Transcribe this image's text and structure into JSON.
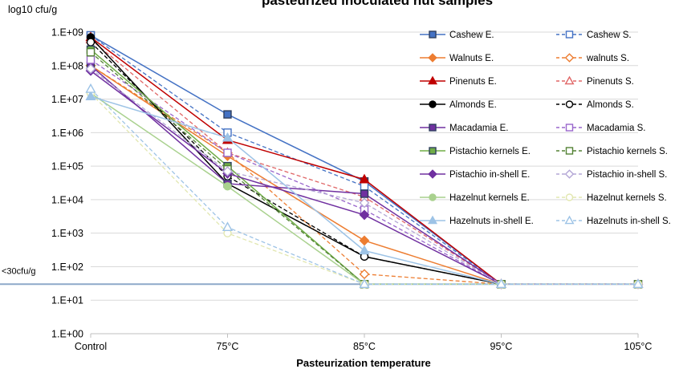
{
  "chart_data": {
    "type": "line",
    "title": "pasteurized inoculated nut samples",
    "ylabel": "log10 cfu/g",
    "xlabel": "Pasteurization temperature",
    "yscale": "log",
    "ylim": [
      1,
      1000000000
    ],
    "categories": [
      "Control",
      "75°C",
      "85°C",
      "95°C",
      "105°C"
    ],
    "y_tick_labels": [
      "1.E+00",
      "1.E+01",
      "1.E+02",
      "1.E+03",
      "1.E+04",
      "1.E+05",
      "1.E+06",
      "1.E+07",
      "1.E+08",
      "1.E+09"
    ],
    "detection_limit": {
      "value": 30,
      "label": "<30cfu/g",
      "color": "#8EA9C9"
    },
    "grid": true,
    "legend_position": "right",
    "series": [
      {
        "name": "Cashew E.",
        "color": "#4472C4",
        "dash": "solid",
        "marker": "square",
        "fill": true,
        "values": [
          800000000,
          3500000,
          35000,
          30,
          null
        ]
      },
      {
        "name": "Cashew S.",
        "color": "#4472C4",
        "dash": "dashed",
        "marker": "square",
        "fill": false,
        "values": [
          800000000,
          1000000,
          25000,
          30,
          30
        ]
      },
      {
        "name": "Walnuts E.",
        "color": "#ED7D31",
        "dash": "solid",
        "marker": "diamond",
        "fill": true,
        "values": [
          100000000,
          200000,
          600,
          30,
          null
        ]
      },
      {
        "name": "walnuts S.",
        "color": "#ED7D31",
        "dash": "dashed",
        "marker": "diamond",
        "fill": false,
        "values": [
          100000000,
          250000,
          60,
          30,
          30
        ]
      },
      {
        "name": "Pinenuts E.",
        "color": "#C00000",
        "dash": "solid",
        "marker": "triangle",
        "fill": true,
        "values": [
          700000000,
          600000,
          40000,
          30,
          null
        ]
      },
      {
        "name": "Pinenuts S.",
        "color": "#E06666",
        "dash": "dashed",
        "marker": "triangle",
        "fill": false,
        "values": [
          600000000,
          250000,
          12000,
          30,
          30
        ]
      },
      {
        "name": "Almonds E.",
        "color": "#000000",
        "dash": "solid",
        "marker": "circle",
        "fill": true,
        "values": [
          700000000,
          30000,
          200,
          30,
          null
        ]
      },
      {
        "name": "Almonds S.",
        "color": "#000000",
        "dash": "dashed",
        "marker": "circle",
        "fill": false,
        "values": [
          500000000,
          50000,
          200,
          30,
          30
        ]
      },
      {
        "name": "Macadamia E.",
        "color": "#7030A0",
        "dash": "solid",
        "marker": "square",
        "fill": true,
        "values": [
          100000000,
          30000,
          15000,
          30,
          null
        ]
      },
      {
        "name": "Macadamia S.",
        "color": "#9966CC",
        "dash": "dashed",
        "marker": "square",
        "fill": false,
        "values": [
          150000000,
          250000,
          5000,
          30,
          30
        ]
      },
      {
        "name": "Pistachio kernels E.",
        "color": "#70AD47",
        "dash": "solid",
        "marker": "square",
        "fill": true,
        "values": [
          300000000,
          100000,
          30,
          30,
          null
        ]
      },
      {
        "name": "Pistachio kernels S.",
        "color": "#548235",
        "dash": "dashed",
        "marker": "square",
        "fill": false,
        "values": [
          250000000,
          80000,
          30,
          30,
          30
        ]
      },
      {
        "name": "Pistachio in-shell E.",
        "color": "#7030A0",
        "dash": "solid",
        "marker": "diamond",
        "fill": true,
        "values": [
          70000000,
          60000,
          3500,
          30,
          null
        ]
      },
      {
        "name": "Pistachio in-shell S.",
        "color": "#B4A7D6",
        "dash": "dashed",
        "marker": "diamond",
        "fill": false,
        "values": [
          80000000,
          70000,
          8000,
          30,
          30
        ]
      },
      {
        "name": "Hazelnut kernels E.",
        "color": "#A9D18E",
        "dash": "solid",
        "marker": "circle",
        "fill": true,
        "values": [
          15000000,
          25000,
          30,
          30,
          null
        ]
      },
      {
        "name": "Hazelnut kernels S.",
        "color": "#E2E7B0",
        "dash": "dashed",
        "marker": "circle",
        "fill": false,
        "values": [
          15000000,
          1000,
          30,
          30,
          30
        ]
      },
      {
        "name": "Hazelnuts in-shell E.",
        "color": "#9DC3E6",
        "dash": "solid",
        "marker": "triangle",
        "fill": true,
        "values": [
          12000000,
          700000,
          300,
          30,
          null
        ]
      },
      {
        "name": "Hazelnuts in-shell S.",
        "color": "#9DC3E6",
        "dash": "dashed",
        "marker": "triangle",
        "fill": false,
        "values": [
          20000000,
          1500,
          30,
          30,
          30
        ]
      }
    ]
  }
}
